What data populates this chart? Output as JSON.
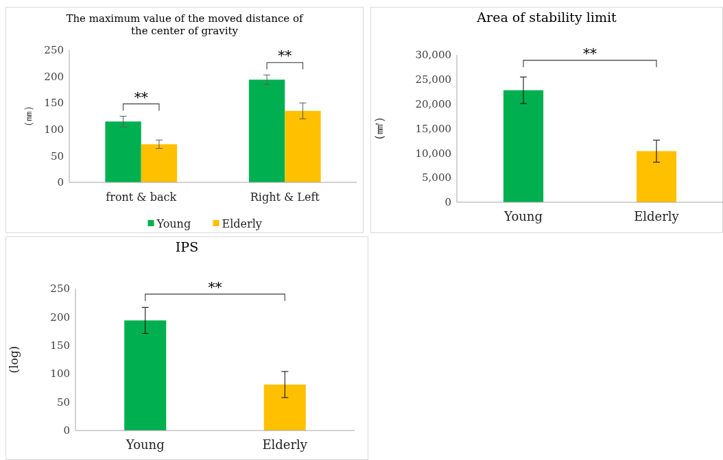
{
  "chart_data": [
    {
      "type": "bar",
      "title": "The maximum value of the moved distance of the center of gravity",
      "ylabel": "（㎜）",
      "categories": [
        "front & back",
        "Right & Left"
      ],
      "series": [
        {
          "name": "Young",
          "color": "#00b050",
          "values": [
            115,
            194
          ],
          "errors": [
            10,
            9
          ]
        },
        {
          "name": "Elderly",
          "color": "#ffc000",
          "values": [
            72,
            135
          ],
          "errors": [
            8,
            15
          ]
        }
      ],
      "ylim": [
        0,
        250
      ],
      "yticks": [
        0,
        50,
        100,
        150,
        200,
        250
      ],
      "grid": false,
      "legend": "bottom",
      "annotations": [
        "**",
        "**"
      ]
    },
    {
      "type": "bar",
      "title": "Area of stability limit",
      "ylabel": "（㎟）",
      "categories": [
        "Young",
        "Elderly"
      ],
      "values": [
        22800,
        10400
      ],
      "colors": [
        "#00b050",
        "#ffc000"
      ],
      "errors": [
        2700,
        2250
      ],
      "ylim": [
        0,
        30000
      ],
      "yticks": [
        0,
        {
          "value": 5000,
          "label": "5,000"
        },
        {
          "value": 10000,
          "label": "10,000"
        },
        {
          "value": 15000,
          "label": "15,000"
        },
        {
          "value": 20000,
          "label": "20,000"
        },
        {
          "value": 25000,
          "label": "25,000"
        },
        {
          "value": 30000,
          "label": "30,000"
        }
      ],
      "grid": false,
      "annotations": [
        "**"
      ]
    },
    {
      "type": "bar",
      "title": "IPS",
      "ylabel": "(log)",
      "categories": [
        "Young",
        "Elderly"
      ],
      "values": [
        194,
        81
      ],
      "colors": [
        "#00b050",
        "#ffc000"
      ],
      "errors": [
        23,
        23
      ],
      "ylim": [
        0,
        250
      ],
      "yticks": [
        0,
        50,
        100,
        150,
        200,
        250
      ],
      "grid": false,
      "annotations": [
        "**"
      ]
    }
  ]
}
